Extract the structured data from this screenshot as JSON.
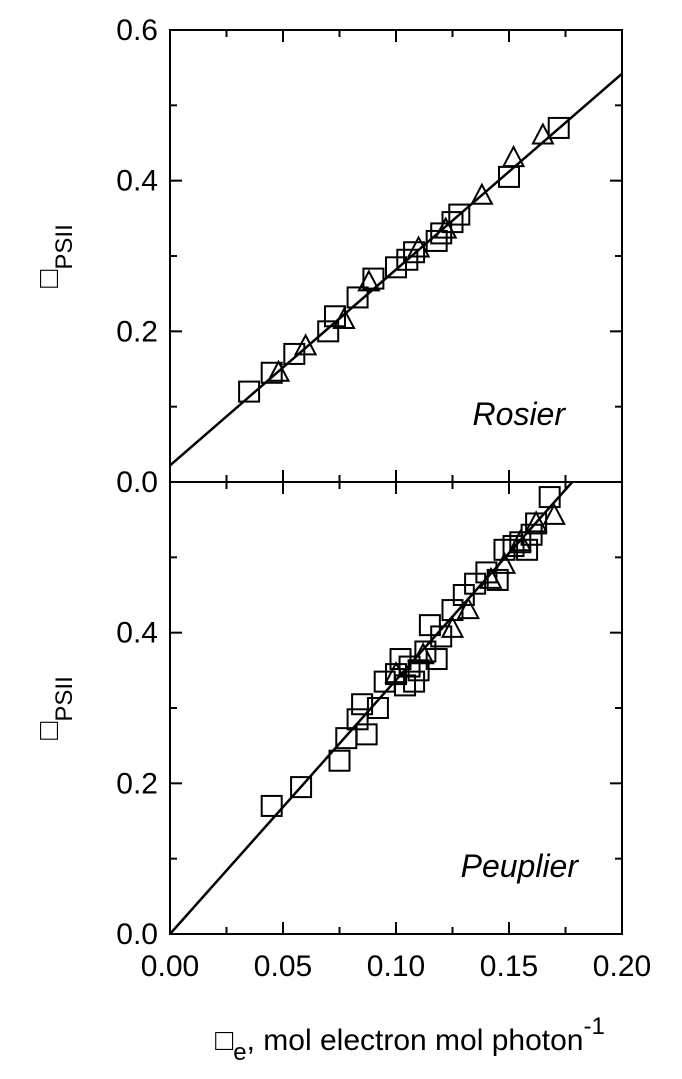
{
  "chart_data": [
    {
      "type": "scatter",
      "panel": "top",
      "panel_label": "Rosier",
      "ylabel": {
        "symbol": "□",
        "subscript": "PSII"
      },
      "xlim": [
        0,
        0.2
      ],
      "ylim": [
        0,
        0.6
      ],
      "yticks": [
        "0.0",
        "0.2",
        "0.4",
        "0.6"
      ],
      "grid": false,
      "fit_line": {
        "x": [
          0,
          0.2
        ],
        "y": [
          0.022,
          0.542
        ]
      },
      "series": [
        {
          "marker": "square",
          "x": [
            0.035,
            0.045,
            0.055,
            0.07,
            0.073,
            0.083,
            0.09,
            0.1,
            0.105,
            0.108,
            0.118,
            0.12,
            0.125,
            0.128,
            0.15,
            0.172
          ],
          "y": [
            0.12,
            0.145,
            0.17,
            0.2,
            0.22,
            0.245,
            0.27,
            0.285,
            0.295,
            0.305,
            0.32,
            0.33,
            0.345,
            0.355,
            0.405,
            0.47
          ]
        },
        {
          "marker": "triangle",
          "x": [
            0.048,
            0.06,
            0.077,
            0.088,
            0.11,
            0.122,
            0.138,
            0.152,
            0.165
          ],
          "y": [
            0.145,
            0.18,
            0.215,
            0.265,
            0.31,
            0.335,
            0.38,
            0.43,
            0.46
          ]
        }
      ]
    },
    {
      "type": "scatter",
      "panel": "bottom",
      "panel_label": "Peuplier",
      "ylabel": {
        "symbol": "□",
        "subscript": "PSII"
      },
      "xlabel": {
        "symbol": "□",
        "subscript": "e",
        "text": ", mol electron mol photon",
        "superscript": "-1"
      },
      "xlim": [
        0,
        0.2
      ],
      "ylim": [
        0,
        0.6
      ],
      "xticks": [
        "0.00",
        "0.05",
        "0.10",
        "0.15",
        "0.20"
      ],
      "yticks": [
        "0.0",
        "0.2",
        "0.4"
      ],
      "grid": false,
      "fit_line": {
        "x": [
          0,
          0.178
        ],
        "y": [
          0,
          0.6
        ]
      },
      "series": [
        {
          "marker": "square",
          "x": [
            0.045,
            0.058,
            0.075,
            0.078,
            0.083,
            0.085,
            0.087,
            0.092,
            0.095,
            0.1,
            0.102,
            0.104,
            0.106,
            0.108,
            0.11,
            0.113,
            0.115,
            0.118,
            0.12,
            0.125,
            0.13,
            0.135,
            0.14,
            0.145,
            0.148,
            0.152,
            0.155,
            0.158,
            0.16,
            0.162,
            0.168
          ],
          "y": [
            0.17,
            0.195,
            0.23,
            0.26,
            0.285,
            0.305,
            0.265,
            0.3,
            0.335,
            0.345,
            0.365,
            0.33,
            0.355,
            0.335,
            0.35,
            0.375,
            0.41,
            0.365,
            0.395,
            0.43,
            0.45,
            0.465,
            0.48,
            0.47,
            0.51,
            0.515,
            0.52,
            0.51,
            0.53,
            0.545,
            0.58
          ]
        },
        {
          "marker": "triangle",
          "x": [
            0.1,
            0.112,
            0.125,
            0.132,
            0.142,
            0.148,
            0.155,
            0.162,
            0.17
          ],
          "y": [
            0.345,
            0.37,
            0.405,
            0.43,
            0.47,
            0.49,
            0.52,
            0.545,
            0.555
          ]
        }
      ]
    }
  ]
}
